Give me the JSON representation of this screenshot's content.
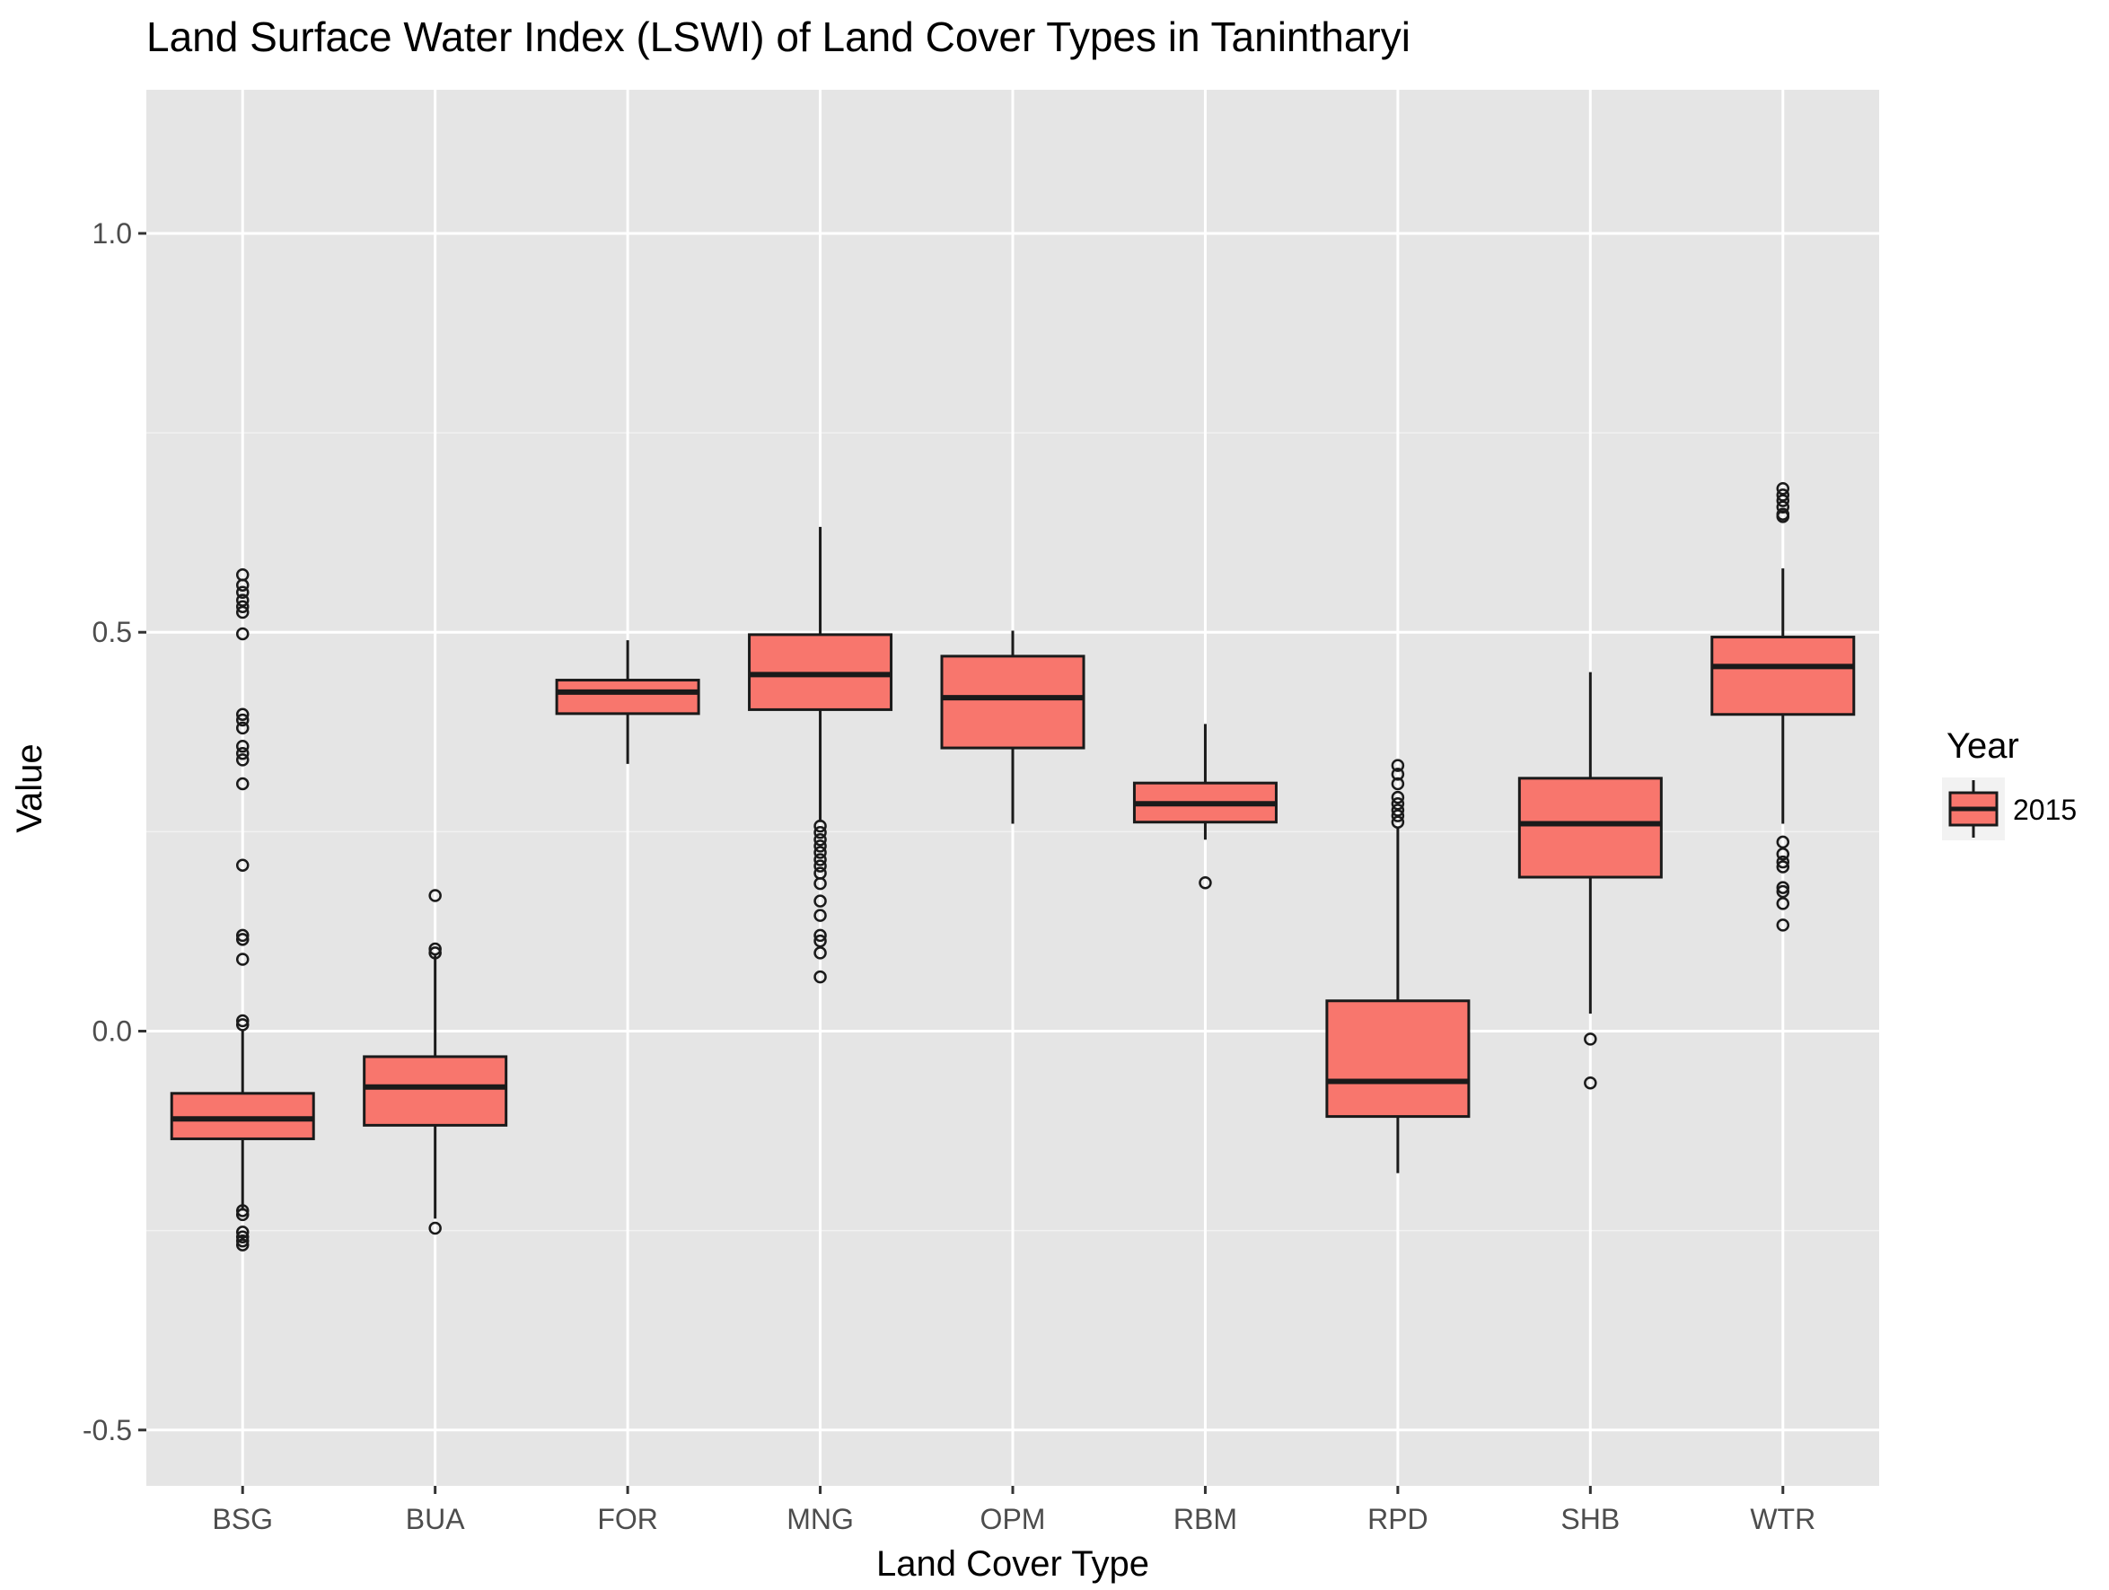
{
  "chart_data": {
    "type": "boxplot",
    "title": "Land Surface Water Index (LSWI) of Land Cover Types in Tanintharyi",
    "xlabel": "Land Cover Type",
    "ylabel": "Value",
    "ylim": [
      -0.57,
      1.18
    ],
    "yticks": [
      -0.5,
      0.0,
      0.5,
      1.0
    ],
    "ytick_labels": [
      "-0.5",
      "0.0",
      "0.5",
      "1.0"
    ],
    "grid": true,
    "legend": {
      "title": "Year",
      "position": "right",
      "entries": [
        "2015"
      ]
    },
    "fill_color": "#F8766D",
    "panel_color": "#E5E5E5",
    "categories": [
      "BSG",
      "BUA",
      "FOR",
      "MNG",
      "OPM",
      "RBM",
      "RPD",
      "SHB",
      "WTR"
    ],
    "series": [
      {
        "name": "2015",
        "boxes": [
          {
            "category": "BSG",
            "whisker_low": -0.225,
            "q1": -0.135,
            "median": -0.11,
            "q3": -0.078,
            "whisker_high": 0.0,
            "outliers": [
              0.572,
              0.559,
              0.55,
              0.54,
              0.532,
              0.525,
              0.498,
              0.397,
              0.39,
              0.38,
              0.357,
              0.348,
              0.34,
              0.31,
              0.208,
              0.12,
              0.115,
              0.09,
              0.013,
              0.008,
              -0.225,
              -0.23,
              -0.252,
              -0.258,
              -0.263,
              -0.268
            ]
          },
          {
            "category": "BUA",
            "whisker_low": -0.235,
            "q1": -0.118,
            "median": -0.07,
            "q3": -0.032,
            "whisker_high": 0.095,
            "outliers": [
              0.17,
              0.103,
              0.098,
              -0.247
            ]
          },
          {
            "category": "FOR",
            "whisker_low": 0.335,
            "q1": 0.398,
            "median": 0.425,
            "q3": 0.44,
            "whisker_high": 0.49,
            "outliers": []
          },
          {
            "category": "MNG",
            "whisker_low": 0.262,
            "q1": 0.403,
            "median": 0.447,
            "q3": 0.497,
            "whisker_high": 0.632,
            "outliers": [
              0.257,
              0.249,
              0.24,
              0.232,
              0.224,
              0.215,
              0.207,
              0.198,
              0.185,
              0.163,
              0.145,
              0.12,
              0.113,
              0.098,
              0.068
            ]
          },
          {
            "category": "OPM",
            "whisker_low": 0.26,
            "q1": 0.355,
            "median": 0.418,
            "q3": 0.47,
            "whisker_high": 0.502,
            "outliers": []
          },
          {
            "category": "RBM",
            "whisker_low": 0.24,
            "q1": 0.262,
            "median": 0.285,
            "q3": 0.311,
            "whisker_high": 0.385,
            "outliers": [
              0.186
            ]
          },
          {
            "category": "RPD",
            "whisker_low": -0.178,
            "q1": -0.107,
            "median": -0.063,
            "q3": 0.038,
            "whisker_high": 0.255,
            "outliers": [
              0.333,
              0.322,
              0.31,
              0.293,
              0.285,
              0.277,
              0.27,
              0.262
            ]
          },
          {
            "category": "SHB",
            "whisker_low": 0.022,
            "q1": 0.193,
            "median": 0.26,
            "q3": 0.317,
            "whisker_high": 0.45,
            "outliers": [
              -0.01,
              -0.065
            ]
          },
          {
            "category": "WTR",
            "whisker_low": 0.26,
            "q1": 0.397,
            "median": 0.457,
            "q3": 0.494,
            "whisker_high": 0.58,
            "outliers": [
              0.68,
              0.672,
              0.665,
              0.657,
              0.648,
              0.645,
              0.237,
              0.222,
              0.212,
              0.206,
              0.18,
              0.175,
              0.16,
              0.133
            ]
          }
        ]
      }
    ]
  }
}
